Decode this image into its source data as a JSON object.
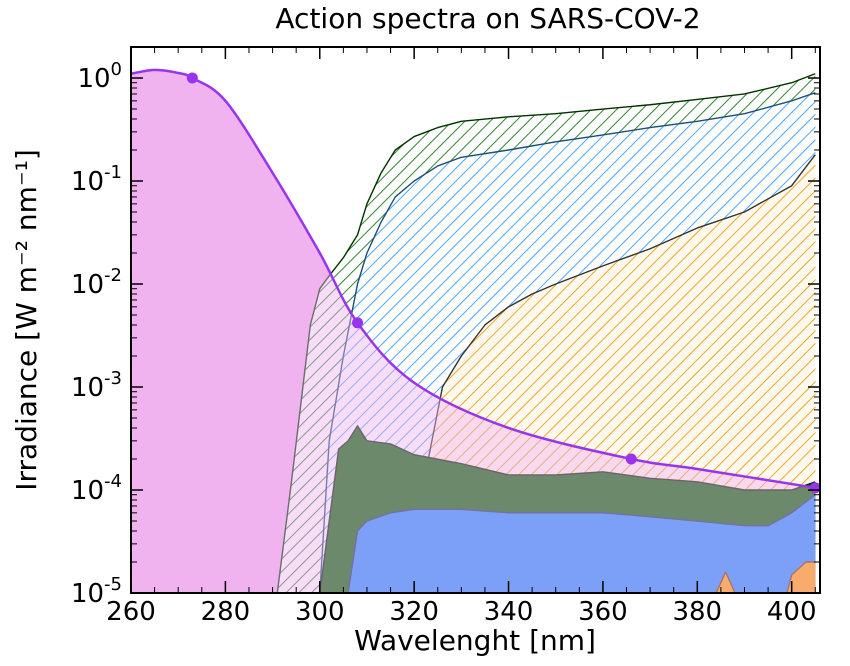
{
  "chart_data": {
    "type": "area",
    "title": "Action spectra on SARS-COV-2",
    "xlabel": "Wavelenght [nm]",
    "ylabel": "Irradiance [W m⁻² nm⁻¹]",
    "y_scale": "log",
    "xlim": [
      260,
      406
    ],
    "ylim": [
      1e-05,
      2
    ],
    "x_ticks": [
      260,
      280,
      300,
      320,
      340,
      360,
      380,
      400
    ],
    "y_ticks": [
      {
        "value": 1,
        "base": "10",
        "exp": "0"
      },
      {
        "value": 0.1,
        "base": "10",
        "exp": "-1"
      },
      {
        "value": 0.01,
        "base": "10",
        "exp": "-2"
      },
      {
        "value": 0.001,
        "base": "10",
        "exp": "-3"
      },
      {
        "value": 0.0001,
        "base": "10",
        "exp": "-4"
      },
      {
        "value": 1e-05,
        "base": "10",
        "exp": "-5"
      }
    ],
    "colors": {
      "action_fill": "#f0b3f0",
      "action_line": "#9933ee",
      "green": "#006600",
      "blue": "#1e90ff",
      "orange": "#ffa500"
    },
    "series": [
      {
        "id": "action_spectrum",
        "style": "solid-fill-line",
        "x": [
          260,
          265,
          270,
          273,
          280,
          290,
          300,
          308,
          320,
          340,
          366,
          380,
          405
        ],
        "y": [
          1.1,
          1.2,
          1.12,
          1.0,
          0.6,
          0.12,
          0.02,
          0.0042,
          0.0011,
          0.0004,
          0.0002,
          0.00016,
          0.000105
        ]
      },
      {
        "id": "green_hatched",
        "style": "hatched",
        "x": [
          291,
          294,
          298,
          300,
          302,
          305,
          308,
          310,
          313,
          316,
          320,
          325,
          330,
          340,
          350,
          360,
          370,
          380,
          390,
          400,
          405
        ],
        "y": [
          1e-05,
          0.00012,
          0.004,
          0.009,
          0.012,
          0.018,
          0.03,
          0.06,
          0.12,
          0.2,
          0.27,
          0.33,
          0.38,
          0.42,
          0.45,
          0.5,
          0.55,
          0.62,
          0.7,
          0.9,
          1.1
        ]
      },
      {
        "id": "blue_hatched",
        "style": "hatched",
        "x": [
          300,
          302,
          305,
          308,
          310,
          313,
          316,
          320,
          325,
          330,
          340,
          350,
          360,
          370,
          380,
          390,
          400,
          405
        ],
        "y": [
          1e-05,
          0.0003,
          0.002,
          0.01,
          0.02,
          0.04,
          0.07,
          0.1,
          0.14,
          0.17,
          0.2,
          0.24,
          0.28,
          0.33,
          0.38,
          0.45,
          0.6,
          0.72
        ]
      },
      {
        "id": "orange_hatched",
        "style": "hatched",
        "x": [
          321,
          323,
          326,
          330,
          335,
          340,
          345,
          350,
          360,
          370,
          380,
          390,
          400,
          405
        ],
        "y": [
          1e-05,
          0.0002,
          0.001,
          0.002,
          0.004,
          0.006,
          0.008,
          0.01,
          0.015,
          0.022,
          0.035,
          0.05,
          0.09,
          0.18
        ]
      },
      {
        "id": "green_solid",
        "style": "solid",
        "x": [
          300,
          302,
          304,
          306,
          308,
          310,
          315,
          320,
          330,
          340,
          350,
          360,
          370,
          380,
          390,
          400,
          405
        ],
        "y": [
          1e-05,
          5e-05,
          0.00025,
          0.0003,
          0.00042,
          0.0003,
          0.00028,
          0.00022,
          0.00018,
          0.00014,
          0.00014,
          0.00015,
          0.00013,
          0.00012,
          0.0001,
          0.0001,
          0.00012
        ]
      },
      {
        "id": "blue_solid",
        "style": "solid",
        "x": [
          306,
          307,
          308,
          310,
          315,
          320,
          330,
          340,
          350,
          360,
          370,
          380,
          390,
          395,
          400,
          405
        ],
        "y": [
          1e-05,
          2e-05,
          4e-05,
          5e-05,
          6e-05,
          6.5e-05,
          6.5e-05,
          6e-05,
          6e-05,
          6e-05,
          5.5e-05,
          5e-05,
          4.5e-05,
          4.5e-05,
          6e-05,
          9e-05
        ]
      },
      {
        "id": "orange_solid",
        "style": "solid",
        "x": [
          384,
          386,
          388,
          399,
          400,
          403,
          405
        ],
        "y": [
          1e-05,
          1.6e-05,
          1e-05,
          1e-05,
          1.5e-05,
          2e-05,
          2e-05
        ]
      }
    ],
    "markers": [
      {
        "x": 273,
        "y": 1.0
      },
      {
        "x": 308,
        "y": 0.0042
      },
      {
        "x": 366,
        "y": 0.0002
      },
      {
        "x": 405,
        "y": 0.000105
      }
    ]
  }
}
